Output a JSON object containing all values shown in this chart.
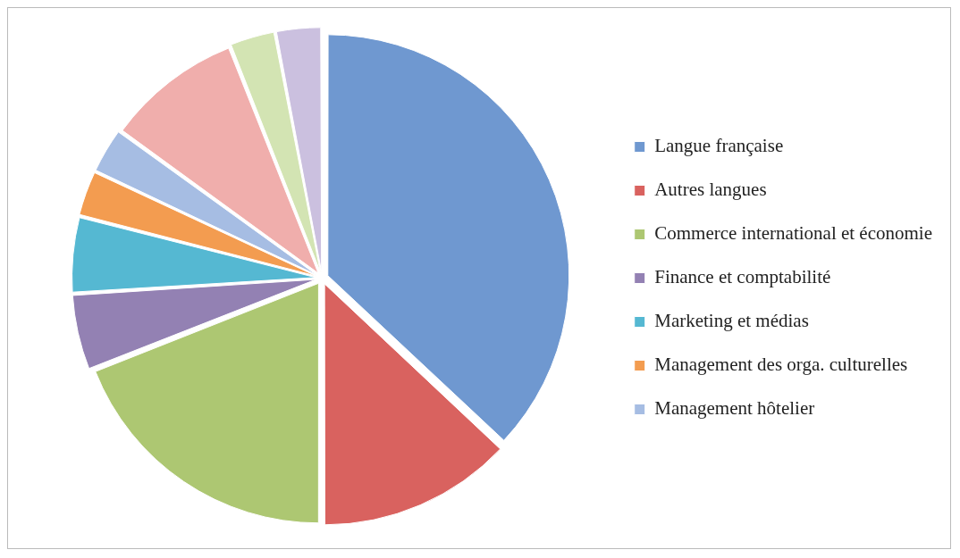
{
  "chart_data": {
    "type": "pie",
    "categories": [
      "Langue française",
      "Autres langues",
      "Commerce international et économie",
      "Finance et comptabilité",
      "Marketing et médias",
      "Management des orga. culturelles",
      "Management hôtelier",
      null,
      null,
      null
    ],
    "values": [
      37,
      13,
      19,
      5,
      5,
      3,
      3,
      9,
      3,
      3
    ],
    "colors": [
      "#6f98d0",
      "#d9625f",
      "#adc772",
      "#9381b3",
      "#55b8d2",
      "#f39c50",
      "#a6bde3",
      "#f0aeac",
      "#d3e4b3",
      "#cbc0df"
    ],
    "legend": "right"
  }
}
